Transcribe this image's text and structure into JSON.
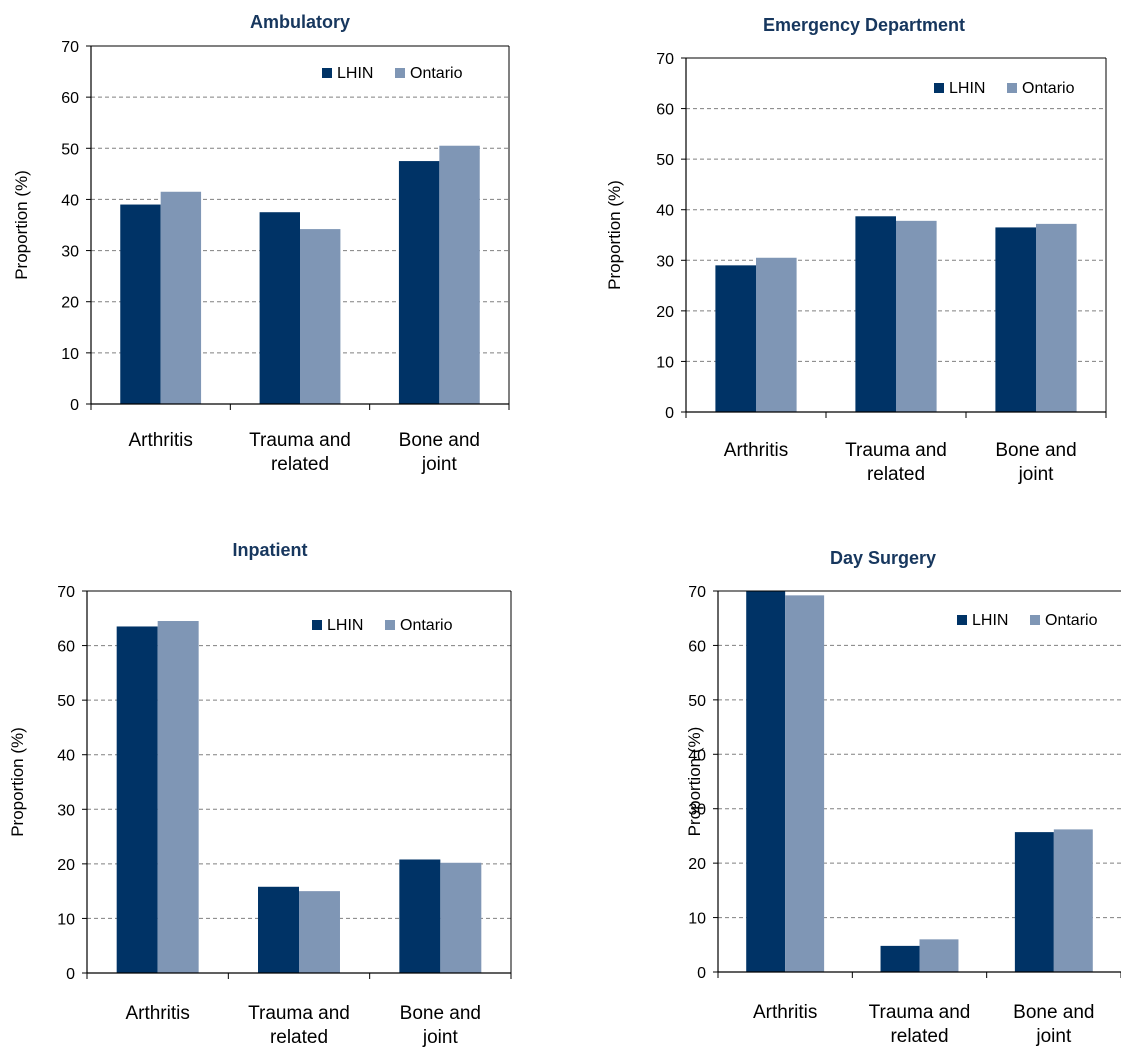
{
  "colors": {
    "LHIN": "#003366",
    "Ontario": "#7f96b5",
    "title": "#17375e",
    "grid": "#808080"
  },
  "chart_data": [
    {
      "type": "bar",
      "title": "Ambulatory",
      "ylabel": "Proportion (%)",
      "ylim": [
        0,
        70
      ],
      "yticks": [
        0,
        10,
        20,
        30,
        40,
        50,
        60,
        70
      ],
      "grid": true,
      "legend_position": "top-right",
      "categories": [
        [
          "Arthritis"
        ],
        [
          "Trauma and",
          "related"
        ],
        [
          "Bone and",
          "joint"
        ]
      ],
      "series": [
        {
          "name": "LHIN",
          "values": [
            39,
            37.5,
            47.5
          ]
        },
        {
          "name": "Ontario",
          "values": [
            41.5,
            34.2,
            50.5
          ]
        }
      ]
    },
    {
      "type": "bar",
      "title": "Emergency Department",
      "ylabel": "Proportion (%)",
      "ylim": [
        0,
        70
      ],
      "yticks": [
        0,
        10,
        20,
        30,
        40,
        50,
        60,
        70
      ],
      "grid": true,
      "legend_position": "top-right",
      "categories": [
        [
          "Arthritis"
        ],
        [
          "Trauma and",
          "related"
        ],
        [
          "Bone and",
          "joint"
        ]
      ],
      "series": [
        {
          "name": "LHIN",
          "values": [
            29,
            38.7,
            36.5
          ]
        },
        {
          "name": "Ontario",
          "values": [
            30.5,
            37.8,
            37.2
          ]
        }
      ]
    },
    {
      "type": "bar",
      "title": "Inpatient",
      "ylabel": "Proportion (%)",
      "ylim": [
        0,
        70
      ],
      "yticks": [
        0,
        10,
        20,
        30,
        40,
        50,
        60,
        70
      ],
      "grid": true,
      "legend_position": "top-right",
      "categories": [
        [
          "Arthritis"
        ],
        [
          "Trauma and",
          "related"
        ],
        [
          "Bone and",
          "joint"
        ]
      ],
      "series": [
        {
          "name": "LHIN",
          "values": [
            63.5,
            15.8,
            20.8
          ]
        },
        {
          "name": "Ontario",
          "values": [
            64.5,
            15,
            20.2
          ]
        }
      ]
    },
    {
      "type": "bar",
      "title": "Day Surgery",
      "ylabel": "Proportion (%)",
      "ylim": [
        0,
        70
      ],
      "yticks": [
        0,
        10,
        20,
        30,
        40,
        50,
        60,
        70
      ],
      "grid": true,
      "legend_position": "top-right",
      "categories": [
        [
          "Arthritis"
        ],
        [
          "Trauma and",
          "related"
        ],
        [
          "Bone and",
          "joint"
        ]
      ],
      "series": [
        {
          "name": "LHIN",
          "values": [
            70,
            4.8,
            25.7
          ]
        },
        {
          "name": "Ontario",
          "values": [
            69.2,
            6,
            26.2
          ]
        }
      ]
    }
  ]
}
